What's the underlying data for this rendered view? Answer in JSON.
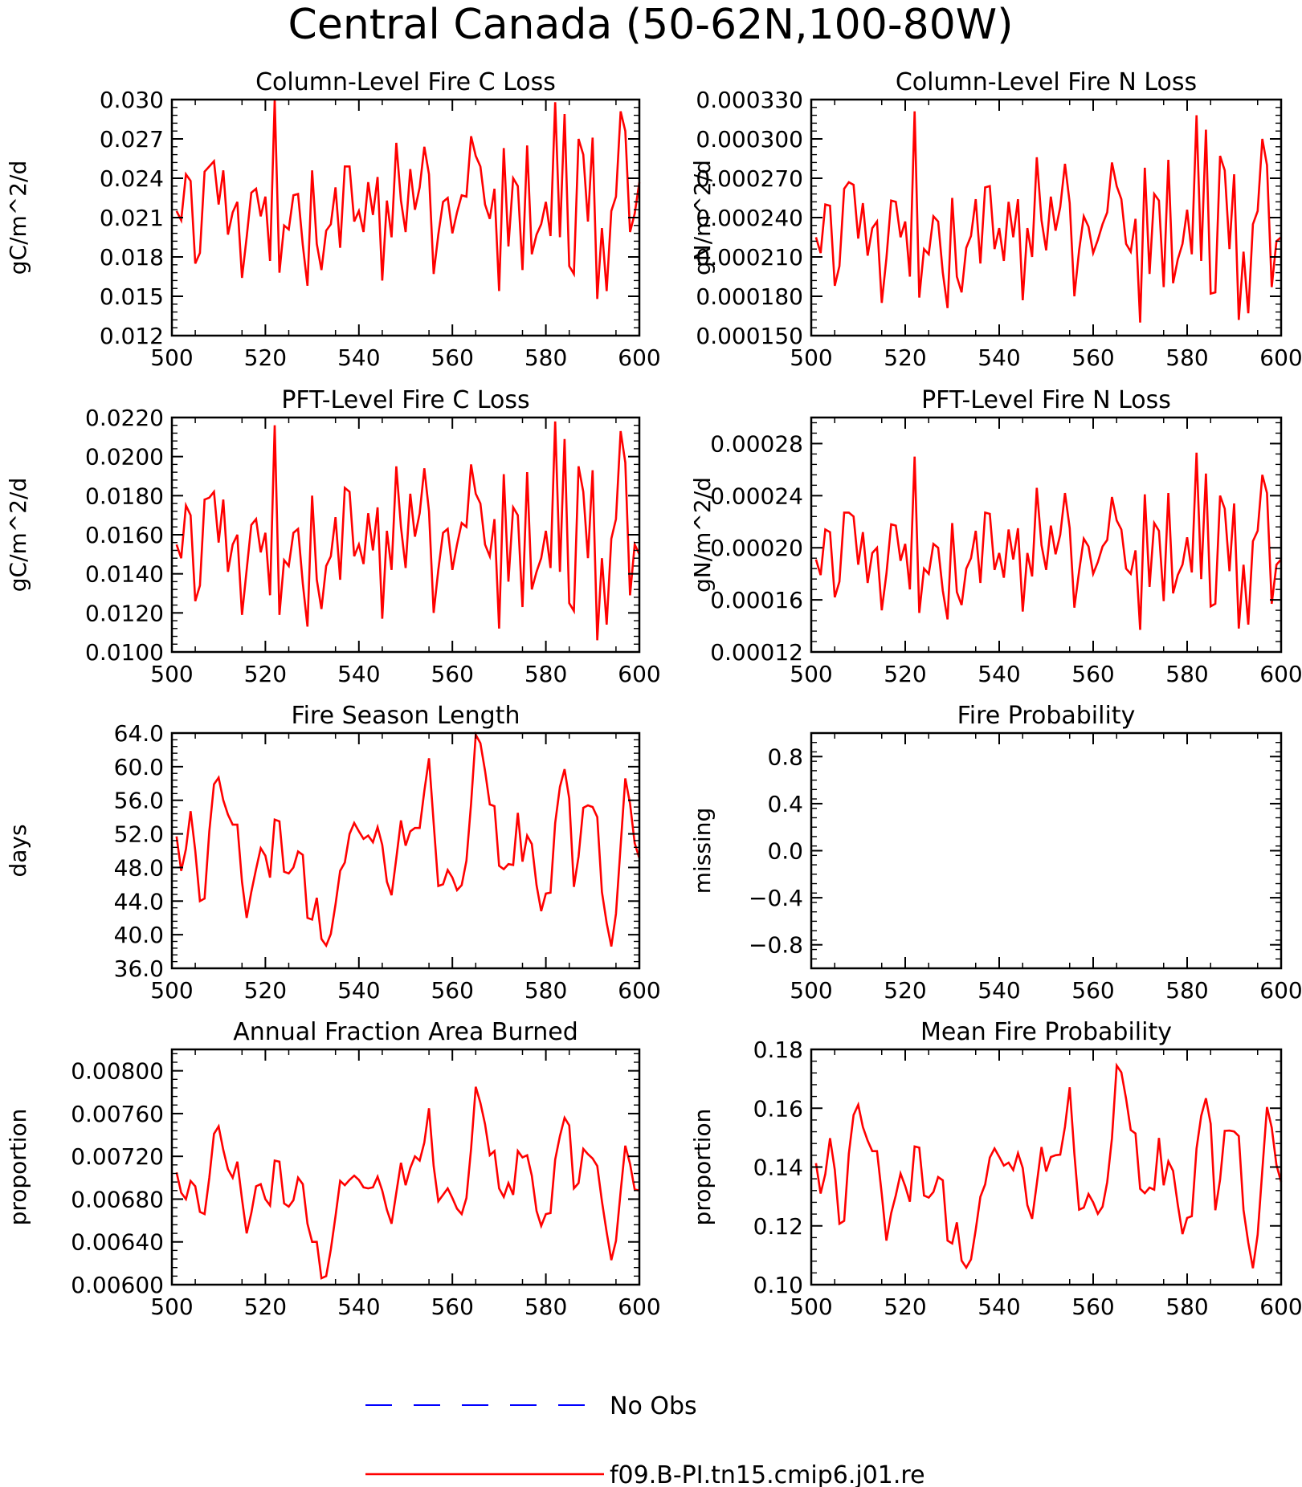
{
  "figure": {
    "title": "Central Canada (50-62N,100-80W)",
    "legend": {
      "placement": "bottom-center",
      "entries": [
        {
          "label": "No Obs",
          "color": "#0000ff",
          "style": "dashed"
        },
        {
          "label": "f09.B-PI.tn15.cmip6.j01.re",
          "color": "#ff0000",
          "style": "solid"
        }
      ]
    }
  },
  "chart_data": [
    {
      "type": "line",
      "title": "Column-Level Fire C Loss",
      "ylabel": "gC/m^2/d",
      "xlabel": "",
      "xlim": [
        500,
        600
      ],
      "xticks": [
        500,
        520,
        540,
        560,
        580,
        600
      ],
      "ylim": [
        0.012,
        0.03
      ],
      "yticks": [
        "0.012",
        "0.015",
        "0.018",
        "0.021",
        "0.024",
        "0.027",
        "0.030"
      ],
      "series": [
        {
          "color": "#ff0000",
          "x_start": 501,
          "values": [
            0.0215,
            0.0208,
            0.0243,
            0.0238,
            0.0175,
            0.0183,
            0.0245,
            0.0249,
            0.0253,
            0.022,
            0.0246,
            0.0197,
            0.0214,
            0.0222,
            0.0164,
            0.0195,
            0.0229,
            0.0232,
            0.0211,
            0.0226,
            0.0177,
            0.03,
            0.0168,
            0.0204,
            0.0201,
            0.0227,
            0.0228,
            0.0189,
            0.0158,
            0.0246,
            0.019,
            0.017,
            0.02,
            0.0205,
            0.0233,
            0.0187,
            0.0249,
            0.0249,
            0.0207,
            0.0215,
            0.0199,
            0.0237,
            0.0212,
            0.0241,
            0.0162,
            0.0223,
            0.0195,
            0.0267,
            0.0223,
            0.0199,
            0.0247,
            0.0216,
            0.0233,
            0.0264,
            0.0243,
            0.0167,
            0.0197,
            0.0222,
            0.0225,
            0.0198,
            0.0214,
            0.0227,
            0.0226,
            0.0272,
            0.0257,
            0.0249,
            0.022,
            0.0209,
            0.0232,
            0.0154,
            0.0263,
            0.0188,
            0.024,
            0.0234,
            0.017,
            0.0265,
            0.0182,
            0.0197,
            0.0205,
            0.0222,
            0.0196,
            0.0298,
            0.0195,
            0.0289,
            0.0173,
            0.0167,
            0.027,
            0.0258,
            0.0207,
            0.0271,
            0.0148,
            0.0202,
            0.0154,
            0.0215,
            0.0226,
            0.0291,
            0.0276,
            0.0199,
            0.0213,
            0.0237
          ]
        }
      ]
    },
    {
      "type": "line",
      "title": "Column-Level Fire N Loss",
      "ylabel": "gN/m^2/d",
      "xlabel": "",
      "xlim": [
        500,
        600
      ],
      "xticks": [
        500,
        520,
        540,
        560,
        580,
        600
      ],
      "ylim": [
        0.00015,
        0.00033
      ],
      "yticks": [
        "0.000150",
        "0.000180",
        "0.000210",
        "0.000240",
        "0.000270",
        "0.000300",
        "0.000330"
      ],
      "series": [
        {
          "color": "#ff0000",
          "x_start": 501,
          "values": [
            0.000225,
            0.000213,
            0.00025,
            0.000249,
            0.000188,
            0.000203,
            0.000262,
            0.000267,
            0.000265,
            0.000224,
            0.000251,
            0.000211,
            0.000232,
            0.000237,
            0.000175,
            0.000209,
            0.000253,
            0.000252,
            0.000225,
            0.000237,
            0.000195,
            0.000321,
            0.000179,
            0.000216,
            0.000212,
            0.000241,
            0.000237,
            0.000198,
            0.000171,
            0.000255,
            0.000195,
            0.000183,
            0.000217,
            0.000226,
            0.000254,
            0.000205,
            0.000263,
            0.000264,
            0.000216,
            0.000232,
            0.000207,
            0.000252,
            0.000225,
            0.000254,
            0.000177,
            0.000232,
            0.00021,
            0.000286,
            0.000238,
            0.000215,
            0.000256,
            0.00023,
            0.000248,
            0.000281,
            0.000251,
            0.00018,
            0.000215,
            0.000241,
            0.000233,
            0.000213,
            0.000223,
            0.000235,
            0.000244,
            0.000282,
            0.000264,
            0.000254,
            0.00022,
            0.000214,
            0.000239,
            0.00016,
            0.000278,
            0.000197,
            0.000258,
            0.000253,
            0.000187,
            0.000284,
            0.00019,
            0.000208,
            0.00022,
            0.000246,
            0.000212,
            0.000318,
            0.000207,
            0.000307,
            0.000182,
            0.000183,
            0.000287,
            0.000276,
            0.000216,
            0.000273,
            0.000162,
            0.000214,
            0.000167,
            0.000235,
            0.000245,
            0.0003,
            0.00028,
            0.000187,
            0.000222,
            0.000225
          ]
        }
      ]
    },
    {
      "type": "line",
      "title": "PFT-Level Fire C Loss",
      "ylabel": "gC/m^2/d",
      "xlabel": "",
      "xlim": [
        500,
        600
      ],
      "xticks": [
        500,
        520,
        540,
        560,
        580,
        600
      ],
      "ylim": [
        0.01,
        0.022
      ],
      "yticks": [
        "0.0100",
        "0.0120",
        "0.0140",
        "0.0160",
        "0.0180",
        "0.0200",
        "0.0220"
      ],
      "series": [
        {
          "color": "#ff0000",
          "x_start": 501,
          "values": [
            0.0155,
            0.0148,
            0.0175,
            0.017,
            0.0126,
            0.0134,
            0.0178,
            0.0179,
            0.0182,
            0.0156,
            0.0178,
            0.0141,
            0.0155,
            0.016,
            0.0119,
            0.0142,
            0.0165,
            0.0168,
            0.0151,
            0.0161,
            0.0129,
            0.0216,
            0.0119,
            0.0147,
            0.0144,
            0.0161,
            0.0163,
            0.0135,
            0.0113,
            0.018,
            0.0137,
            0.0122,
            0.0144,
            0.0149,
            0.0169,
            0.0137,
            0.0184,
            0.0182,
            0.0149,
            0.0155,
            0.0145,
            0.0171,
            0.0152,
            0.0174,
            0.0117,
            0.0162,
            0.0142,
            0.0195,
            0.0164,
            0.0143,
            0.0181,
            0.0159,
            0.0171,
            0.0194,
            0.0172,
            0.012,
            0.0142,
            0.0161,
            0.0163,
            0.0142,
            0.0155,
            0.0166,
            0.0164,
            0.0196,
            0.0181,
            0.0176,
            0.0155,
            0.0149,
            0.0168,
            0.0112,
            0.0191,
            0.0136,
            0.0174,
            0.017,
            0.0123,
            0.0192,
            0.0132,
            0.0141,
            0.0148,
            0.0162,
            0.0143,
            0.0218,
            0.0141,
            0.0209,
            0.0125,
            0.0121,
            0.0195,
            0.0182,
            0.0148,
            0.0193,
            0.0106,
            0.0148,
            0.0114,
            0.0158,
            0.0168,
            0.0213,
            0.0197,
            0.0129,
            0.0155,
            0.015
          ]
        }
      ]
    },
    {
      "type": "line",
      "title": "PFT-Level Fire N Loss",
      "ylabel": "gN/m^2/d",
      "xlabel": "",
      "xlim": [
        500,
        600
      ],
      "xticks": [
        500,
        520,
        540,
        560,
        580,
        600
      ],
      "ylim": [
        0.00012,
        0.0003
      ],
      "yticks": [
        "0.00012",
        "0.00016",
        "0.00020",
        "0.00024",
        "0.00028"
      ],
      "series": [
        {
          "color": "#ff0000",
          "x_start": 501,
          "values": [
            0.000191,
            0.000179,
            0.000214,
            0.000212,
            0.000162,
            0.000174,
            0.000227,
            0.000227,
            0.000224,
            0.000187,
            0.000212,
            0.000173,
            0.000196,
            0.0002,
            0.000152,
            0.00018,
            0.000218,
            0.000217,
            0.00019,
            0.000203,
            0.000168,
            0.00027,
            0.00015,
            0.000184,
            0.00018,
            0.000203,
            0.0002,
            0.000167,
            0.000145,
            0.000219,
            0.000166,
            0.000156,
            0.000184,
            0.000192,
            0.000213,
            0.000173,
            0.000227,
            0.000226,
            0.000183,
            0.000196,
            0.000177,
            0.000214,
            0.000191,
            0.000215,
            0.000151,
            0.000196,
            0.000178,
            0.000246,
            0.000202,
            0.000183,
            0.000217,
            0.000195,
            0.00021,
            0.000242,
            0.000215,
            0.000154,
            0.000182,
            0.000207,
            0.000201,
            0.00018,
            0.000189,
            0.000201,
            0.000206,
            0.000239,
            0.000221,
            0.000214,
            0.000184,
            0.00018,
            0.000198,
            0.000137,
            0.000241,
            0.00017,
            0.000219,
            0.000213,
            0.000159,
            0.000242,
            0.000165,
            0.000179,
            0.000187,
            0.000208,
            0.000181,
            0.000273,
            0.000176,
            0.000257,
            0.000155,
            0.000157,
            0.00024,
            0.00023,
            0.000182,
            0.000234,
            0.000138,
            0.000187,
            0.000141,
            0.000205,
            0.000213,
            0.000256,
            0.000242,
            0.000157,
            0.000187,
            0.000191
          ]
        }
      ]
    },
    {
      "type": "line",
      "title": "Fire Season Length",
      "ylabel": "days",
      "xlabel": "",
      "xlim": [
        500,
        600
      ],
      "xticks": [
        500,
        520,
        540,
        560,
        580,
        600
      ],
      "ylim": [
        36.0,
        64.0
      ],
      "yticks": [
        "36.0",
        "40.0",
        "44.0",
        "48.0",
        "52.0",
        "56.0",
        "60.0",
        "64.0"
      ],
      "series": [
        {
          "color": "#ff0000",
          "x_start": 501,
          "values": [
            51.7,
            47.6,
            50.2,
            54.7,
            50.0,
            44.0,
            44.3,
            52.3,
            57.9,
            58.7,
            56.0,
            54.3,
            53.1,
            53.1,
            46.3,
            42.0,
            45.1,
            47.8,
            50.3,
            49.4,
            46.8,
            53.7,
            53.5,
            47.5,
            47.3,
            48.0,
            49.9,
            49.5,
            42.0,
            41.8,
            44.4,
            39.5,
            38.7,
            40.1,
            43.6,
            47.6,
            48.6,
            52.0,
            53.3,
            52.3,
            51.4,
            51.8,
            51.0,
            52.8,
            50.7,
            46.3,
            44.7,
            49.1,
            53.6,
            50.6,
            52.3,
            52.7,
            52.7,
            57.1,
            61.0,
            53.3,
            45.8,
            46.0,
            47.7,
            46.8,
            45.3,
            45.9,
            48.8,
            55.6,
            63.8,
            62.8,
            59.5,
            55.5,
            55.3,
            48.2,
            47.8,
            48.4,
            48.3,
            54.5,
            48.7,
            51.8,
            50.8,
            45.9,
            42.8,
            44.9,
            45.0,
            53.3,
            57.6,
            59.7,
            56.2,
            45.7,
            49.3,
            55.1,
            55.4,
            55.2,
            54.0,
            45.1,
            41.4,
            38.6,
            42.5,
            50.6,
            58.6,
            55.6,
            50.9,
            49.1
          ]
        }
      ]
    },
    {
      "type": "line",
      "title": "Fire Probability",
      "ylabel": "missing",
      "xlabel": "",
      "xlim": [
        500,
        600
      ],
      "xticks": [
        500,
        520,
        540,
        560,
        580,
        600
      ],
      "ylim": [
        -1.0,
        1.0
      ],
      "yticks": [
        "−0.8",
        "−0.4",
        "0.0",
        "0.4",
        "0.8"
      ],
      "series": []
    },
    {
      "type": "line",
      "title": "Annual Fraction Area Burned",
      "ylabel": "proportion",
      "xlabel": "",
      "xlim": [
        500,
        600
      ],
      "xticks": [
        500,
        520,
        540,
        560,
        580,
        600
      ],
      "ylim": [
        0.006,
        0.0082
      ],
      "yticks": [
        "0.00600",
        "0.00640",
        "0.00680",
        "0.00720",
        "0.00760",
        "0.00800"
      ],
      "series": [
        {
          "color": "#ff0000",
          "x_start": 501,
          "values": [
            0.00705,
            0.00686,
            0.0068,
            0.00697,
            0.00692,
            0.00668,
            0.00666,
            0.007,
            0.00741,
            0.00748,
            0.00726,
            0.00708,
            0.007,
            0.00715,
            0.0068,
            0.00648,
            0.00667,
            0.00692,
            0.00694,
            0.0068,
            0.00674,
            0.00716,
            0.00715,
            0.00676,
            0.00673,
            0.00679,
            0.007,
            0.00694,
            0.00657,
            0.0064,
            0.0064,
            0.00606,
            0.00608,
            0.00633,
            0.00664,
            0.00697,
            0.00693,
            0.00698,
            0.00702,
            0.00698,
            0.00691,
            0.0069,
            0.00691,
            0.00701,
            0.00688,
            0.0067,
            0.00657,
            0.00686,
            0.00714,
            0.00693,
            0.00709,
            0.0072,
            0.00716,
            0.00733,
            0.00765,
            0.00711,
            0.00678,
            0.00684,
            0.0069,
            0.00681,
            0.00671,
            0.00666,
            0.00681,
            0.00727,
            0.00785,
            0.0077,
            0.0075,
            0.00721,
            0.00725,
            0.0069,
            0.00682,
            0.00695,
            0.00684,
            0.00725,
            0.00719,
            0.00721,
            0.00702,
            0.00669,
            0.00655,
            0.00666,
            0.00667,
            0.00717,
            0.00739,
            0.00756,
            0.00749,
            0.0069,
            0.00695,
            0.00727,
            0.00722,
            0.00718,
            0.00711,
            0.00678,
            0.00649,
            0.00623,
            0.00641,
            0.00687,
            0.0073,
            0.00713,
            0.00689,
            0.00688
          ]
        }
      ]
    },
    {
      "type": "line",
      "title": "Mean Fire Probability",
      "ylabel": "proportion",
      "xlabel": "",
      "xlim": [
        500,
        600
      ],
      "xticks": [
        500,
        520,
        540,
        560,
        580,
        600
      ],
      "ylim": [
        0.1,
        0.18
      ],
      "yticks": [
        "0.10",
        "0.12",
        "0.14",
        "0.16",
        "0.18"
      ],
      "series": [
        {
          "color": "#ff0000",
          "x_start": 501,
          "values": [
            0.1413,
            0.131,
            0.1376,
            0.1498,
            0.1391,
            0.1207,
            0.1217,
            0.1445,
            0.1577,
            0.1612,
            0.1536,
            0.149,
            0.1454,
            0.1454,
            0.1308,
            0.115,
            0.1243,
            0.1304,
            0.1378,
            0.1335,
            0.1282,
            0.147,
            0.1466,
            0.1303,
            0.1296,
            0.1315,
            0.1366,
            0.1355,
            0.115,
            0.114,
            0.1212,
            0.1082,
            0.1058,
            0.1086,
            0.1187,
            0.1299,
            0.1341,
            0.1432,
            0.1463,
            0.1435,
            0.1405,
            0.1415,
            0.139,
            0.1447,
            0.1397,
            0.127,
            0.1224,
            0.1343,
            0.1468,
            0.1385,
            0.1434,
            0.144,
            0.1442,
            0.1537,
            0.1671,
            0.1445,
            0.1255,
            0.1262,
            0.1308,
            0.128,
            0.1241,
            0.1265,
            0.1349,
            0.1498,
            0.1745,
            0.1722,
            0.1632,
            0.1526,
            0.1514,
            0.1326,
            0.1311,
            0.133,
            0.1323,
            0.1499,
            0.1338,
            0.1419,
            0.1387,
            0.1273,
            0.1172,
            0.1227,
            0.1233,
            0.1463,
            0.1574,
            0.1634,
            0.1547,
            0.1253,
            0.1357,
            0.1523,
            0.1524,
            0.1521,
            0.1505,
            0.1254,
            0.1143,
            0.1056,
            0.117,
            0.1389,
            0.1604,
            0.1534,
            0.1407,
            0.1349
          ]
        }
      ]
    }
  ]
}
